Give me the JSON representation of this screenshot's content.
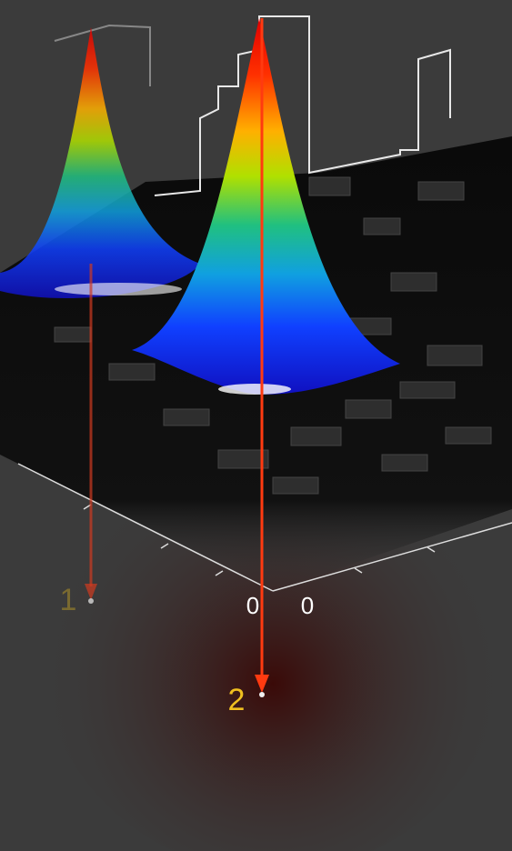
{
  "labels": {
    "peak_1": "1",
    "peak_2": "2",
    "origin_left": "0",
    "origin_right": "0"
  }
}
